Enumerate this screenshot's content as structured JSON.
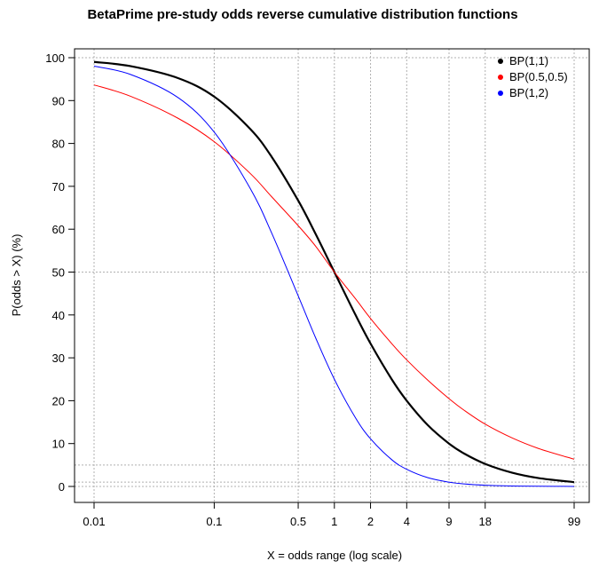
{
  "chart_data": {
    "type": "line",
    "title": "BetaPrime pre-study odds reverse cumulative distribution functions",
    "xlabel": "X = odds range (log scale)",
    "ylabel": "P(odds > X) (%)",
    "x_scale": "log",
    "xlim": [
      0.01,
      99
    ],
    "ylim": [
      0,
      100
    ],
    "x_ticks": [
      0.01,
      0.1,
      0.5,
      1,
      2,
      4,
      9,
      18,
      99
    ],
    "x_tick_labels": [
      "0.01",
      "0.1",
      "0.5",
      "1",
      "2",
      "4",
      "9",
      "18",
      "99"
    ],
    "y_ticks": [
      0,
      10,
      20,
      30,
      40,
      50,
      60,
      70,
      80,
      90,
      100
    ],
    "y_tick_labels": [
      "0",
      "10",
      "20",
      "30",
      "40",
      "50",
      "60",
      "70",
      "80",
      "90",
      "100"
    ],
    "grid": "dotted reference lines at x ticks and at y = 0, 1, 5, 50, 100",
    "grid_y_values": [
      0,
      1,
      5,
      50,
      100
    ],
    "legend_position": "top-right",
    "x": [
      0.01,
      0.02,
      0.05,
      0.1,
      0.2,
      0.3,
      0.5,
      0.7,
      1,
      1.5,
      2,
      3,
      4,
      6,
      9,
      12,
      18,
      30,
      50,
      99
    ],
    "series": [
      {
        "name": "BP(1,1)",
        "color": "#000000",
        "values": [
          99.01,
          98.04,
          95.24,
          90.91,
          83.33,
          76.92,
          66.67,
          58.82,
          50.0,
          40.0,
          33.33,
          25.0,
          20.0,
          14.29,
          10.0,
          7.69,
          5.26,
          3.23,
          1.96,
          1.0
        ]
      },
      {
        "name": "BP(0.5,0.5)",
        "color": "#ff0000",
        "values": [
          93.65,
          91.03,
          85.87,
          80.41,
          72.97,
          67.6,
          60.82,
          56.0,
          50.0,
          43.77,
          39.18,
          33.33,
          29.52,
          24.77,
          20.48,
          17.78,
          14.52,
          11.34,
          8.85,
          6.35
        ]
      },
      {
        "name": "BP(1,2)",
        "color": "#0000ff",
        "values": [
          98.03,
          96.12,
          90.7,
          82.64,
          69.44,
          59.17,
          44.44,
          34.6,
          25.0,
          16.0,
          11.11,
          6.25,
          4.0,
          2.04,
          1.0,
          0.59,
          0.28,
          0.1,
          0.04,
          0.01
        ]
      }
    ]
  }
}
